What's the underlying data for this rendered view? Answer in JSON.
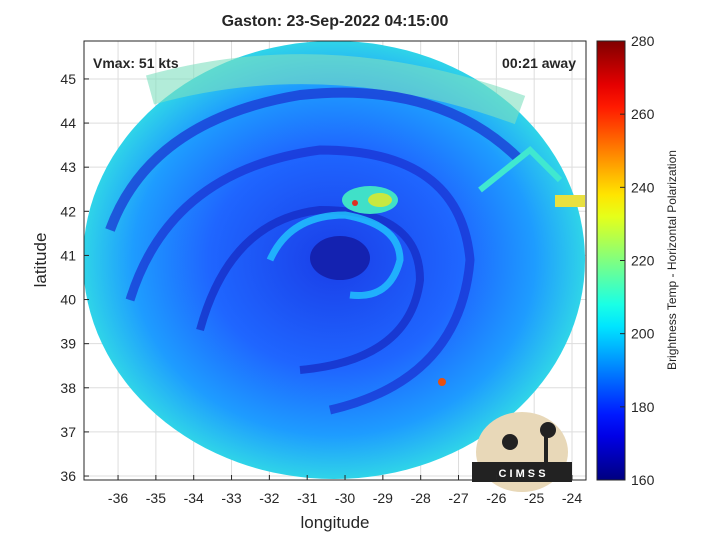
{
  "chart_data": {
    "type": "image",
    "title": "Gaston: 23-Sep-2022 04:15:00",
    "annotations": [
      "Vmax: 51 kts",
      "00:21 away"
    ],
    "logo": "C I M S S",
    "xlabel": "longitude",
    "ylabel": "latitude",
    "xlim": [
      -36.9,
      -23.63
    ],
    "ylim": [
      35.91,
      45.86
    ],
    "xticks": [
      -36,
      -35,
      -34,
      -33,
      -32,
      -31,
      -30,
      -29,
      -28,
      -27,
      -26,
      -25,
      -24
    ],
    "yticks": [
      36,
      37,
      38,
      39,
      40,
      41,
      42,
      43,
      44,
      45
    ],
    "grid": true,
    "colorbar": {
      "label": "Brightness Temp - Horizontal Polarization",
      "lim": [
        160,
        280
      ],
      "ticks": [
        160,
        180,
        200,
        220,
        240,
        260,
        280
      ],
      "colormap": "jet"
    }
  }
}
